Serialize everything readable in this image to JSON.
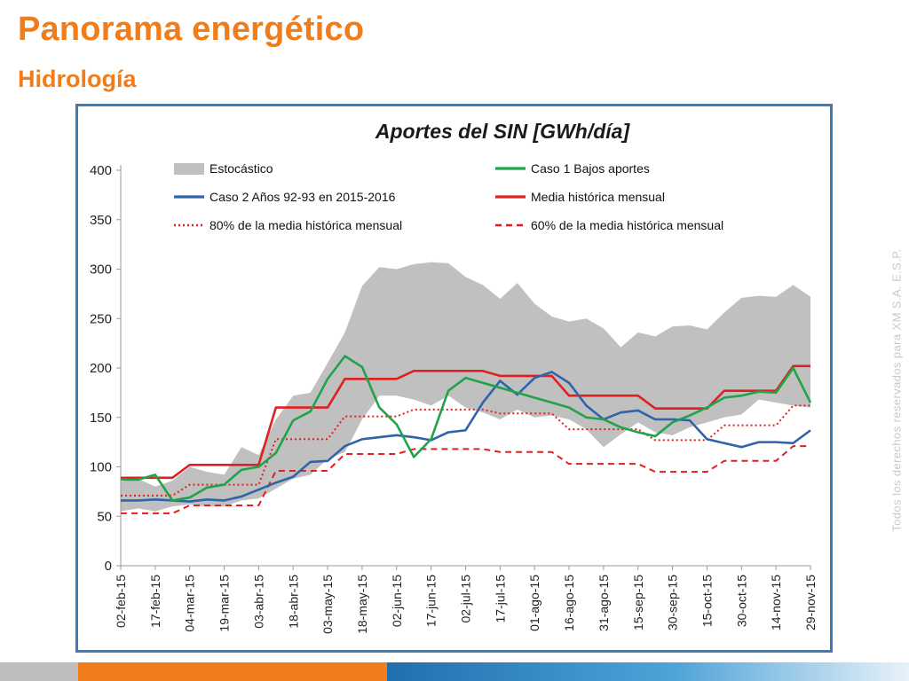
{
  "header": {
    "title": "Panorama energético",
    "subtitle": "Hidrología"
  },
  "side_note": "Todos los derechos reservados para XM S.A. E.S.P.",
  "colors": {
    "brand_orange": "#f07d1a",
    "frame_blue": "#3d7ab8",
    "band_gray": "#c0c0c0",
    "series_green": "#21a34a",
    "series_blue": "#2f64a8",
    "series_red": "#e02020"
  },
  "chart_data": {
    "type": "line",
    "title": "Aportes del SIN [GWh/día]",
    "xlabel": "",
    "ylabel": "",
    "ylim": [
      0,
      400
    ],
    "yticks": [
      0,
      50,
      100,
      150,
      200,
      250,
      300,
      350,
      400
    ],
    "grid": false,
    "legend_position": "top",
    "x_labels": [
      "02-feb-15",
      "17-feb-15",
      "04-mar-15",
      "19-mar-15",
      "03-abr-15",
      "18-abr-15",
      "03-may-15",
      "18-may-15",
      "02-jun-15",
      "17-jun-15",
      "02-jul-15",
      "17-jul-15",
      "01-ago-15",
      "16-ago-15",
      "31-ago-15",
      "15-sep-15",
      "30-sep-15",
      "15-oct-15",
      "30-oct-15",
      "14-nov-15",
      "29-nov-15"
    ],
    "x": [
      0,
      0.5,
      1,
      1.5,
      2,
      2.5,
      3,
      3.5,
      4,
      4.5,
      5,
      5.5,
      6,
      6.5,
      7,
      7.5,
      8,
      8.5,
      9,
      9.5,
      10,
      10.5,
      11,
      11.5,
      12,
      12.5,
      13,
      13.5,
      14,
      14.5,
      15,
      15.5,
      16,
      16.5,
      17,
      17.5,
      18,
      18.5,
      19,
      19.5,
      20
    ],
    "series": [
      {
        "name": "Estocástico",
        "kind": "band",
        "color": "#c0c0c0",
        "upper": [
          85,
          88,
          80,
          86,
          100,
          95,
          92,
          120,
          112,
          148,
          172,
          175,
          205,
          236,
          283,
          302,
          300,
          305,
          307,
          306,
          292,
          284,
          270,
          286,
          265,
          252,
          247,
          250,
          240,
          221,
          236,
          232,
          242,
          243,
          239,
          256,
          271,
          273,
          272,
          284,
          272
        ],
        "lower": [
          55,
          58,
          55,
          60,
          62,
          60,
          60,
          66,
          68,
          78,
          88,
          92,
          108,
          115,
          148,
          172,
          172,
          168,
          162,
          172,
          160,
          155,
          148,
          158,
          150,
          152,
          148,
          138,
          120,
          133,
          145,
          135,
          132,
          140,
          145,
          150,
          153,
          168,
          165,
          162,
          160
        ]
      },
      {
        "name": "Caso 1 Bajos aportes",
        "kind": "line",
        "color": "#21a34a",
        "style": "solid",
        "values": [
          87,
          87,
          92,
          66,
          69,
          79,
          82,
          97,
          100,
          114,
          147,
          156,
          189,
          212,
          201,
          160,
          143,
          110,
          128,
          177,
          190,
          185,
          180,
          175,
          170,
          165,
          160,
          150,
          148,
          140,
          135,
          131,
          145,
          152,
          160,
          170,
          172,
          176,
          175,
          200,
          165
        ]
      },
      {
        "name": "Caso 2  Años 92-93 en 2015-2016",
        "kind": "line",
        "color": "#2f64a8",
        "style": "solid",
        "values": [
          66,
          66,
          67,
          66,
          65,
          67,
          66,
          70,
          77,
          84,
          90,
          105,
          106,
          121,
          128,
          130,
          132,
          130,
          127,
          135,
          137,
          165,
          187,
          173,
          190,
          196,
          185,
          162,
          148,
          155,
          157,
          148,
          148,
          147,
          128,
          124,
          120,
          125,
          125,
          124,
          137
        ]
      },
      {
        "name": "Media histórica mensual",
        "kind": "line",
        "color": "#e02020",
        "style": "solid",
        "values": [
          89,
          89,
          89,
          89,
          102,
          102,
          102,
          102,
          102,
          160,
          160,
          160,
          160,
          189,
          189,
          189,
          189,
          197,
          197,
          197,
          197,
          197,
          192,
          192,
          192,
          192,
          172,
          172,
          172,
          172,
          172,
          159,
          159,
          159,
          159,
          177,
          177,
          177,
          177,
          202,
          202
        ]
      },
      {
        "name": "80% de la media histórica mensual",
        "kind": "line",
        "color": "#e02020",
        "style": "dotted",
        "values": [
          71,
          71,
          71,
          71,
          82,
          82,
          82,
          82,
          82,
          128,
          128,
          128,
          128,
          151,
          151,
          151,
          151,
          158,
          158,
          158,
          158,
          158,
          154,
          154,
          154,
          154,
          138,
          138,
          138,
          138,
          138,
          127,
          127,
          127,
          127,
          142,
          142,
          142,
          142,
          162,
          162
        ]
      },
      {
        "name": "60% de la media histórica mensual",
        "kind": "line",
        "color": "#e02020",
        "style": "dashed",
        "values": [
          53,
          53,
          53,
          53,
          61,
          61,
          61,
          61,
          61,
          96,
          96,
          96,
          96,
          113,
          113,
          113,
          113,
          118,
          118,
          118,
          118,
          118,
          115,
          115,
          115,
          115,
          103,
          103,
          103,
          103,
          103,
          95,
          95,
          95,
          95,
          106,
          106,
          106,
          106,
          121,
          121
        ]
      }
    ]
  }
}
